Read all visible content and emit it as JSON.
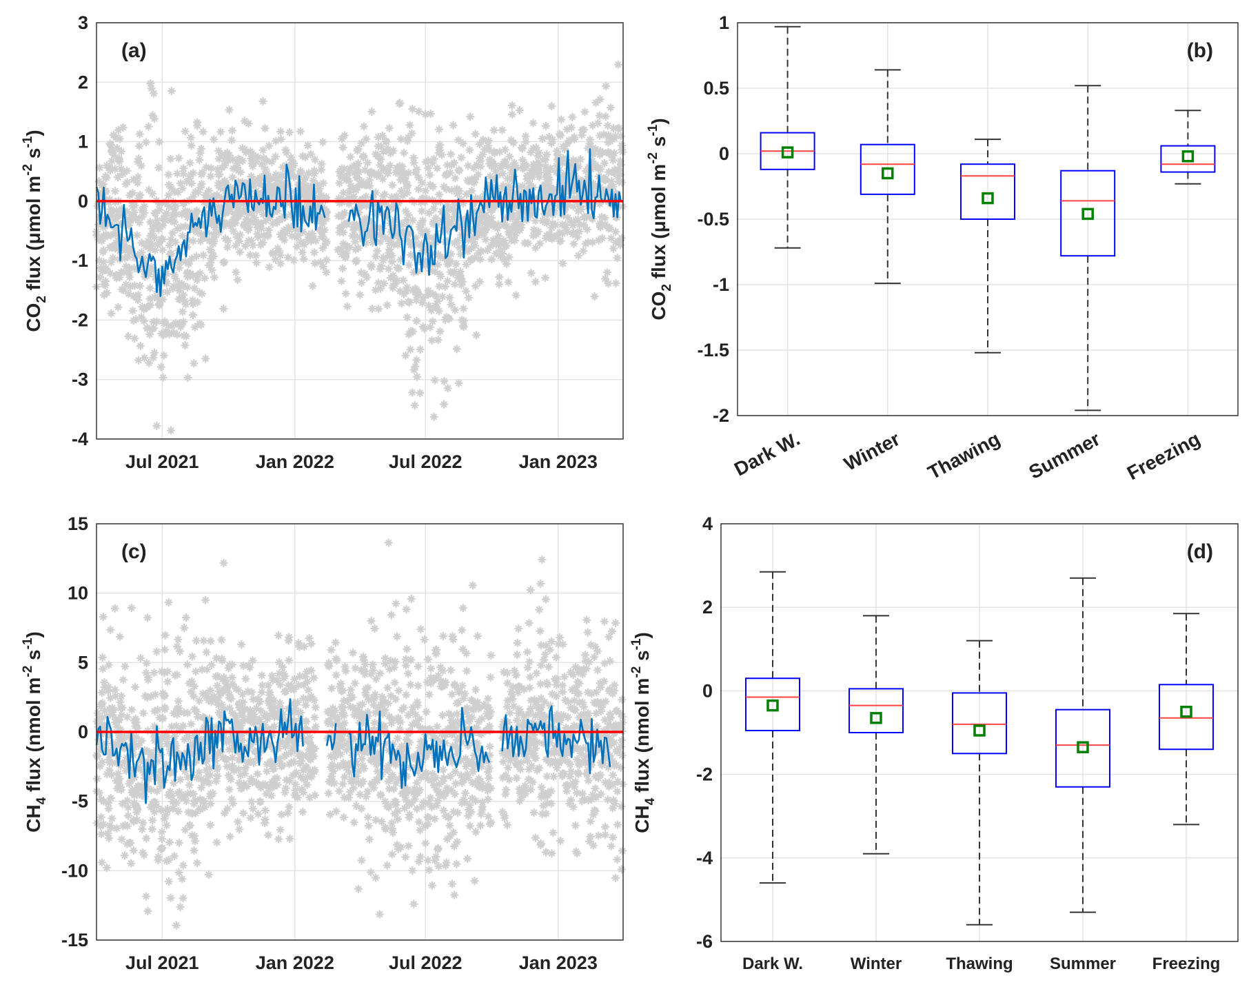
{
  "colors": {
    "scatter": "#cfcfcf",
    "line": "#0072bd",
    "zero": "#ff0000",
    "box": "#0000ff",
    "median": "#ff4040",
    "mean": "#008000",
    "whisker": "#333333",
    "grid": "#e3e3e3"
  },
  "chart_data": [
    {
      "id": "a",
      "type": "line",
      "panel_label": "(a)",
      "ylabel": {
        "pre": "CO",
        "sub": "2",
        "mid": " flux (",
        "unit": "μmol m",
        "sup1": "-2",
        "mid2": " s",
        "sup2": "-1",
        "post": ")"
      },
      "xlim": [
        "2021-04-01",
        "2023-04-01"
      ],
      "ylim": [
        -4,
        3
      ],
      "yticks": [
        3,
        2,
        1,
        0,
        -1,
        -2,
        -3,
        -4
      ],
      "xticks": [
        {
          "date": "2021-07-01",
          "label": "Jul 2021"
        },
        {
          "date": "2022-01-01",
          "label": "Jan 2022"
        },
        {
          "date": "2022-07-01",
          "label": "Jul 2022"
        },
        {
          "date": "2023-01-01",
          "label": "Jan 2023"
        }
      ],
      "zero_line": 0,
      "series_start": "2021-04-01",
      "series_step_days": 15.2,
      "daily_mean": [
        -0.3,
        -0.2,
        -0.5,
        -0.6,
        -0.9,
        -1.1,
        -1.2,
        -1.0,
        -0.8,
        -0.6,
        -0.3,
        -0.1,
        0.0,
        0.1,
        0.0,
        0.1,
        0.0,
        0.05,
        -0.1,
        0.0,
        -0.2,
        null,
        null,
        -0.2,
        -0.3,
        -0.2,
        -0.3,
        -0.4,
        -0.6,
        -0.9,
        -1.0,
        -0.8,
        -0.6,
        -0.4,
        -0.2,
        -0.1,
        0.0,
        0.05,
        -0.1,
        0.0,
        0.1,
        0.1,
        0.2,
        0.15,
        0.2,
        0.2,
        0.1,
        0.1
      ],
      "scatter_spread_sd": [
        0.7,
        0.7,
        0.8,
        0.9,
        1.0,
        1.1,
        1.1,
        1.0,
        0.9,
        0.8,
        0.7,
        0.6,
        0.5,
        0.5,
        0.5,
        0.5,
        0.5,
        0.5,
        0.5,
        0.5,
        0.5,
        null,
        0.6,
        0.6,
        0.7,
        0.8,
        0.8,
        0.9,
        1.0,
        1.1,
        1.1,
        1.0,
        0.9,
        0.8,
        0.7,
        0.6,
        0.6,
        0.6,
        0.6,
        0.6,
        0.6,
        0.6,
        0.6,
        0.6,
        0.6,
        0.6,
        0.7,
        0.7
      ]
    },
    {
      "id": "b",
      "type": "box",
      "panel_label": "(b)",
      "ylabel": {
        "pre": "CO",
        "sub": "2",
        "mid": " flux (",
        "unit": "μmol m",
        "sup1": "-2",
        "mid2": " s",
        "sup2": "-1",
        "post": ")"
      },
      "ylim": [
        -2,
        1
      ],
      "yticks": [
        1,
        0.5,
        0,
        -0.5,
        -1,
        -1.5,
        -2
      ],
      "categories": [
        "Dark W.",
        "Winter",
        "Thawing",
        "Summer",
        "Freezing"
      ],
      "whisker_high": [
        0.97,
        0.64,
        0.11,
        0.52,
        0.33
      ],
      "q3": [
        0.16,
        0.07,
        -0.08,
        -0.13,
        0.06
      ],
      "median": [
        0.02,
        -0.08,
        -0.17,
        -0.36,
        -0.08
      ],
      "q1": [
        -0.12,
        -0.31,
        -0.5,
        -0.78,
        -0.14
      ],
      "whisker_low": [
        -0.72,
        -0.99,
        -1.52,
        -1.96,
        -0.23
      ],
      "mean": [
        0.01,
        -0.15,
        -0.34,
        -0.46,
        -0.02
      ]
    },
    {
      "id": "c",
      "type": "line",
      "panel_label": "(c)",
      "ylabel": {
        "pre": "CH",
        "sub": "4",
        "mid": " flux (",
        "unit": "nmol m",
        "sup1": "-2",
        "mid2": " s",
        "sup2": "-1",
        "post": ")"
      },
      "xlim": [
        "2021-04-01",
        "2023-04-01"
      ],
      "ylim": [
        -15,
        15
      ],
      "yticks": [
        15,
        10,
        5,
        0,
        -5,
        -10,
        -15
      ],
      "xticks": [
        {
          "date": "2021-07-01",
          "label": "Jul 2021"
        },
        {
          "date": "2022-01-01",
          "label": "Jan 2022"
        },
        {
          "date": "2022-07-01",
          "label": "Jul 2022"
        },
        {
          "date": "2023-01-01",
          "label": "Jan 2023"
        }
      ],
      "zero_line": 0,
      "series_start": "2021-04-01",
      "series_step_days": 15.2,
      "daily_mean": [
        -0.5,
        -1,
        -1.5,
        -2,
        -2.5,
        -2.5,
        -2.5,
        -2,
        -1.5,
        -1,
        -0.5,
        -0.3,
        0,
        -0.5,
        -1,
        -0.5,
        -0.5,
        -0.3,
        -0.2,
        null,
        null,
        -0.3,
        null,
        -0.5,
        -0.5,
        -1,
        -1.5,
        -1.5,
        -2,
        -2,
        -2,
        -1.5,
        -1.5,
        -1,
        -1,
        -1.5,
        null,
        -1,
        -0.5,
        0.5,
        0.5,
        -0.5,
        -0.5,
        -0.5,
        -1,
        -0.8,
        -1,
        null
      ],
      "scatter_spread_sd": [
        3.5,
        3.5,
        4,
        4,
        4.5,
        4.5,
        4.5,
        4.5,
        4,
        4,
        3.5,
        3.5,
        3,
        3,
        3,
        3,
        3,
        3,
        3,
        3,
        null,
        3,
        3,
        3.5,
        3.5,
        4,
        4,
        4.5,
        4.5,
        4.5,
        4.5,
        4.5,
        4,
        4,
        3.5,
        3.5,
        null,
        3.5,
        3.5,
        4,
        4,
        3.5,
        3.5,
        3.5,
        3.5,
        3.5,
        3.5,
        3.5
      ]
    },
    {
      "id": "d",
      "type": "box",
      "panel_label": "(d)",
      "ylabel": {
        "pre": "CH",
        "sub": "4",
        "mid": " flux (",
        "unit": "nmol m",
        "sup1": "-2",
        "mid2": " s",
        "sup2": "-1",
        "post": ")"
      },
      "ylim": [
        -6,
        4
      ],
      "yticks": [
        4,
        2,
        0,
        -2,
        -4,
        -6
      ],
      "categories": [
        "Dark W.",
        "Winter",
        "Thawing",
        "Summer",
        "Freezing"
      ],
      "whisker_high": [
        2.85,
        1.8,
        1.2,
        2.7,
        1.85
      ],
      "q3": [
        0.3,
        0.05,
        -0.05,
        -0.45,
        0.15
      ],
      "median": [
        -0.15,
        -0.35,
        -0.8,
        -1.3,
        -0.65
      ],
      "q1": [
        -0.95,
        -1.0,
        -1.5,
        -2.3,
        -1.4
      ],
      "whisker_low": [
        -4.6,
        -3.9,
        -5.6,
        -5.3,
        -3.2
      ],
      "mean": [
        -0.35,
        -0.65,
        -0.95,
        -1.35,
        -0.5
      ]
    }
  ]
}
